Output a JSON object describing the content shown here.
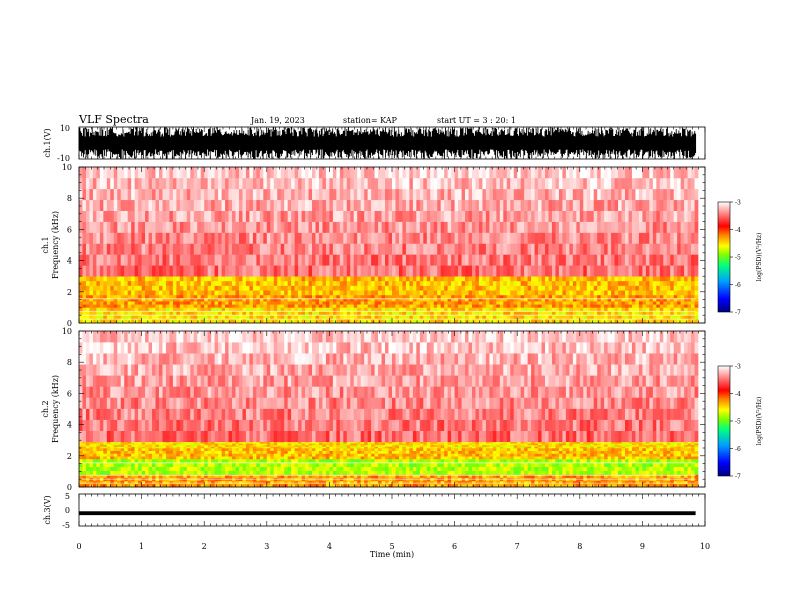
{
  "header": {
    "title": "VLF Spectra",
    "date": "Jan. 19, 2023",
    "station": "station= KAP",
    "start": "start  UT =   3 : 20: 1"
  },
  "chart_data": {
    "type": "heatmap",
    "x": {
      "label": "Time  (min)",
      "range": [
        0,
        10
      ],
      "ticks": [
        "0",
        "1",
        "2",
        "3",
        "4",
        "5",
        "6",
        "7",
        "8",
        "9",
        "10"
      ]
    },
    "panels": [
      {
        "id": "ch1-waveform",
        "type": "line",
        "ylabel": "ch.1(V)",
        "ylim": [
          -10,
          10
        ],
        "ytick_labels": [
          "10",
          "-10"
        ],
        "data_end_min": 9.85
      },
      {
        "id": "ch1-spectrogram",
        "type": "heatmap",
        "ylabel_top": "ch.1",
        "ylabel": "Frequency  (kHz)",
        "ylim": [
          0,
          10
        ],
        "ytick_labels": [
          "0",
          "2",
          "4",
          "6",
          "8",
          "10"
        ],
        "colorbar": {
          "label": "log(PSD)(V²/Hz)",
          "range": [
            -7,
            -3
          ],
          "ticks": [
            "-3",
            "-4",
            "-5",
            "-6",
            "-7"
          ]
        },
        "bands": [
          {
            "f0": 0.0,
            "f1": 1.0,
            "level": -4.5
          },
          {
            "f0": 1.0,
            "f1": 1.8,
            "level": -4.3
          },
          {
            "f0": 1.8,
            "f1": 3.0,
            "level": -4.4
          },
          {
            "f0": 3.0,
            "f1": 10.0,
            "level": -3.6
          }
        ]
      },
      {
        "id": "ch2-spectrogram",
        "type": "heatmap",
        "ylabel_top": "ch.2",
        "ylabel": "Frequency  (kHz)",
        "ylim": [
          0,
          10
        ],
        "ytick_labels": [
          "0",
          "2",
          "4",
          "6",
          "8",
          "10"
        ],
        "colorbar": {
          "label": "log(PSD)(V²/Hz)",
          "range": [
            -7,
            -3
          ],
          "ticks": [
            "-3",
            "-4",
            "-5",
            "-6",
            "-7"
          ]
        },
        "bands": [
          {
            "f0": 0.0,
            "f1": 0.8,
            "level": -4.3
          },
          {
            "f0": 0.8,
            "f1": 1.8,
            "level": -4.8
          },
          {
            "f0": 1.8,
            "f1": 2.5,
            "level": -4.4
          },
          {
            "f0": 2.5,
            "f1": 2.9,
            "level": -4.5
          },
          {
            "f0": 2.9,
            "f1": 10.0,
            "level": -3.6
          }
        ]
      },
      {
        "id": "ch3-waveform",
        "type": "line",
        "ylabel": "ch.3(V)",
        "ylim": [
          -5,
          5
        ],
        "ytick_labels": [
          "5",
          "0",
          "-5"
        ],
        "level_v": -1.0,
        "data_end_min": 9.85
      }
    ]
  },
  "colors": {
    "background": "#ffffff",
    "axis": "#000000",
    "cmap": [
      "#000080",
      "#0000ff",
      "#00a0ff",
      "#00ff80",
      "#80ff00",
      "#ffff00",
      "#ff8000",
      "#ff0000",
      "#ffffff"
    ]
  }
}
